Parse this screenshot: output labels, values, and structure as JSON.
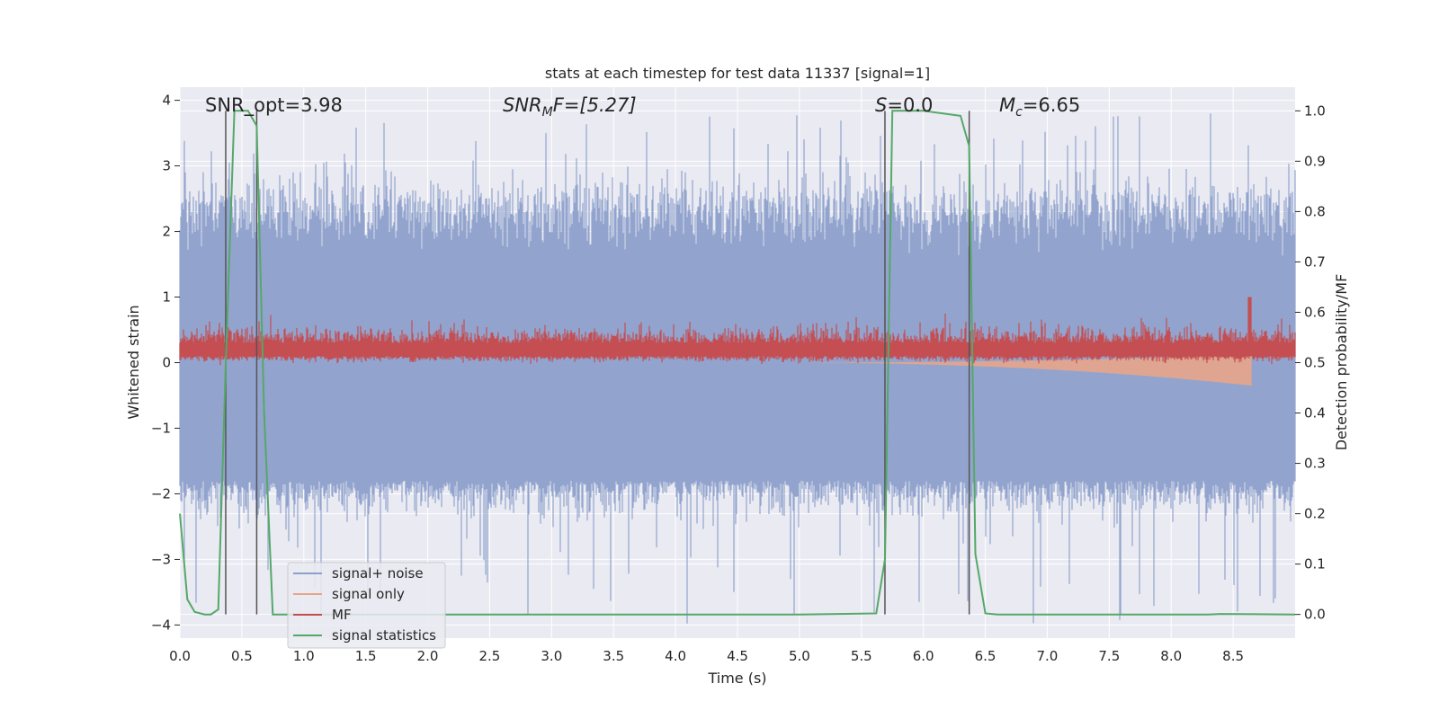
{
  "chart_data": {
    "type": "line",
    "title": "stats at each timestep for test data 11337 [signal=1]",
    "xlabel": "Time (s)",
    "ylabel_left": "Whitened strain",
    "ylabel_right": "Detection probability/MF",
    "xlim": [
      0.0,
      9.0
    ],
    "ylim_left": [
      -4.2,
      4.2
    ],
    "ylim_right": [
      -0.047,
      1.047
    ],
    "xticks": [
      "0.0",
      "0.5",
      "1.0",
      "1.5",
      "2.0",
      "2.5",
      "3.0",
      "3.5",
      "4.0",
      "4.5",
      "5.0",
      "5.5",
      "6.0",
      "6.5",
      "7.0",
      "7.5",
      "8.0",
      "8.5"
    ],
    "yticks_left": [
      "4",
      "3",
      "2",
      "1",
      "0",
      "−1",
      "−2",
      "−3",
      "−4"
    ],
    "yticks_right": [
      "1.0",
      "0.9",
      "0.8",
      "0.7",
      "0.6",
      "0.5",
      "0.4",
      "0.3",
      "0.2",
      "0.1",
      "0.0"
    ],
    "grid": true,
    "legend_position": "lower-left",
    "annotations": {
      "snr_opt": "SNR_opt=3.98",
      "snr_mf_prefix": "SNR",
      "snr_mf_sub": "M",
      "snr_mf_suffix": "F=[5.27]",
      "s_prefix": "S",
      "s_suffix": "=0.0",
      "mc_prefix": "M",
      "mc_sub": "c",
      "mc_suffix": "=6.65"
    },
    "vertical_markers": [
      0.37,
      0.62,
      5.69,
      6.37
    ],
    "series": [
      {
        "name": "signal+ noise",
        "color": "#8da0cb",
        "axis": "left",
        "band": {
          "x_range": [
            0.0,
            9.0
          ],
          "typical_range": [
            -1.8,
            2.2
          ],
          "extreme_range": [
            -4.0,
            3.8
          ]
        }
      },
      {
        "name": "signal only",
        "color": "#e8a58a",
        "axis": "left",
        "chirp": {
          "x_range": [
            4.8,
            8.65
          ],
          "amplitude_start": 0.0,
          "amplitude_end": 0.35
        }
      },
      {
        "name": "MF",
        "color": "#c44e52",
        "axis": "left",
        "band": {
          "x_range": [
            0.0,
            9.0
          ],
          "typical_range": [
            0.05,
            0.55
          ],
          "peak": 1.0,
          "peak_x": 8.63
        }
      },
      {
        "name": "signal statistics",
        "color": "#55a868",
        "axis": "right",
        "x": [
          0.0,
          0.06,
          0.12,
          0.2,
          0.25,
          0.31,
          0.37,
          0.44,
          0.55,
          0.62,
          0.68,
          0.75,
          0.8,
          1.0,
          5.0,
          5.62,
          5.69,
          5.75,
          6.0,
          6.3,
          6.37,
          6.42,
          6.5,
          6.6,
          8.3,
          8.4,
          9.0
        ],
        "values": [
          0.2,
          0.03,
          0.005,
          0.0,
          0.0,
          0.01,
          0.5,
          1.0,
          1.0,
          0.97,
          0.4,
          0.0,
          0.0,
          0.0,
          0.0,
          0.002,
          0.11,
          1.0,
          1.0,
          0.99,
          0.93,
          0.12,
          0.002,
          0.0,
          0.0,
          0.001,
          0.0
        ]
      }
    ]
  }
}
